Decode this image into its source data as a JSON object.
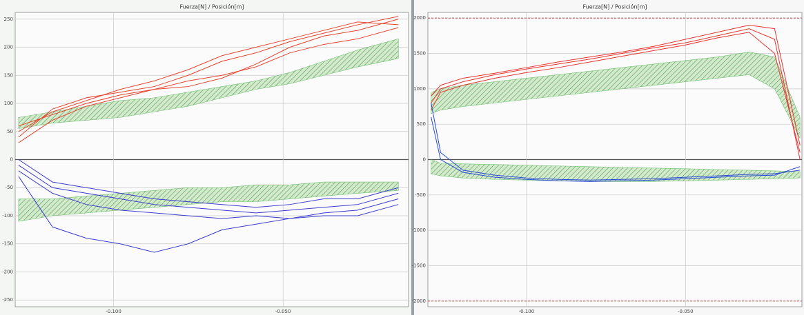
{
  "chart_data": [
    {
      "type": "line",
      "title": "Fuerza[N] / Posición[m]",
      "x": [
        -0.128,
        -0.118,
        -0.108,
        -0.098,
        -0.088,
        -0.078,
        -0.068,
        -0.058,
        -0.048,
        -0.038,
        -0.028,
        -0.016
      ],
      "xlim": [
        -0.129,
        -0.013
      ],
      "xticks": [
        {
          "value": -0.1,
          "label": "-0.100"
        },
        {
          "value": -0.05,
          "label": "-0.050"
        }
      ],
      "ylim": [
        -262,
        262
      ],
      "yticks": [
        250,
        200,
        150,
        100,
        50,
        0,
        -50,
        -100,
        -150,
        -200,
        -250
      ],
      "grid": true,
      "bands": [
        {
          "color": "#5cb85c",
          "lower": [
            55,
            65,
            70,
            75,
            85,
            95,
            110,
            125,
            135,
            150,
            165,
            180
          ],
          "upper": [
            75,
            85,
            95,
            105,
            110,
            120,
            130,
            140,
            155,
            175,
            195,
            215
          ]
        },
        {
          "color": "#5cb85c",
          "lower": [
            -110,
            -100,
            -95,
            -90,
            -85,
            -80,
            -75,
            -75,
            -70,
            -65,
            -60,
            -55
          ],
          "upper": [
            -70,
            -70,
            -65,
            -60,
            -55,
            -50,
            -50,
            -45,
            -45,
            -40,
            -40,
            -40
          ]
        }
      ],
      "series": [
        {
          "color": "#e8432e",
          "values": [
            40,
            90,
            110,
            120,
            130,
            150,
            175,
            190,
            210,
            225,
            240,
            255
          ]
        },
        {
          "color": "#e8432e",
          "values": [
            60,
            80,
            100,
            115,
            125,
            140,
            150,
            165,
            190,
            205,
            215,
            235
          ]
        },
        {
          "color": "#e8432e",
          "values": [
            30,
            70,
            95,
            110,
            125,
            130,
            145,
            170,
            200,
            220,
            230,
            250
          ]
        },
        {
          "color": "#e8432e",
          "values": [
            50,
            85,
            105,
            125,
            140,
            160,
            185,
            200,
            215,
            230,
            245,
            240
          ]
        },
        {
          "color": "#3a3ad0",
          "values": [
            -10,
            -50,
            -60,
            -70,
            -80,
            -85,
            -90,
            -95,
            -90,
            -85,
            -80,
            -60
          ]
        },
        {
          "color": "#3a3ad0",
          "values": [
            -20,
            -60,
            -80,
            -90,
            -95,
            -100,
            -105,
            -100,
            -105,
            -95,
            -90,
            -70
          ]
        },
        {
          "color": "#3a3ad0",
          "values": [
            -30,
            -120,
            -140,
            -150,
            -165,
            -150,
            -125,
            -115,
            -105,
            -100,
            -100,
            -80
          ]
        },
        {
          "color": "#3a3ad0",
          "values": [
            0,
            -40,
            -50,
            -60,
            -70,
            -75,
            -80,
            -85,
            -80,
            -70,
            -70,
            -50
          ]
        }
      ]
    },
    {
      "type": "line",
      "title": "Fuerza[N] / Posición[m]",
      "x": [
        -0.13,
        -0.127,
        -0.12,
        -0.11,
        -0.1,
        -0.09,
        -0.08,
        -0.07,
        -0.06,
        -0.05,
        -0.04,
        -0.03,
        -0.022,
        -0.014
      ],
      "xlim": [
        -0.131,
        -0.0134
      ],
      "xticks": [
        {
          "value": -0.1,
          "label": "-0.100"
        },
        {
          "value": -0.05,
          "label": "-0.050"
        }
      ],
      "ylim": [
        -2080,
        2080
      ],
      "yticks": [
        2000,
        1500,
        1000,
        500,
        0,
        -500,
        -1000,
        -1500,
        -2000
      ],
      "grid": true,
      "limit_lines": [
        2000,
        -2000
      ],
      "limit_color": "#a03030",
      "bands": [
        {
          "color": "#5cb85c",
          "lower": [
            650,
            700,
            750,
            800,
            850,
            900,
            950,
            1000,
            1050,
            1100,
            1150,
            1200,
            1000,
            300
          ],
          "upper": [
            950,
            1000,
            1050,
            1100,
            1150,
            1200,
            1250,
            1300,
            1350,
            1400,
            1450,
            1520,
            1450,
            600
          ]
        },
        {
          "color": "#5cb85c",
          "lower": [
            -200,
            -230,
            -260,
            -280,
            -290,
            -300,
            -310,
            -310,
            -310,
            -300,
            -290,
            -280,
            -270,
            -260
          ],
          "upper": [
            0,
            -50,
            -60,
            -70,
            -80,
            -90,
            -100,
            -110,
            -120,
            -130,
            -140,
            -150,
            -160,
            -170
          ]
        }
      ],
      "series": [
        {
          "color": "#e8332e",
          "values": [
            800,
            1000,
            1100,
            1200,
            1280,
            1350,
            1420,
            1500,
            1580,
            1650,
            1750,
            1850,
            1700,
            0
          ]
        },
        {
          "color": "#e8332e",
          "values": [
            900,
            1050,
            1150,
            1220,
            1300,
            1380,
            1450,
            1520,
            1600,
            1700,
            1800,
            1900,
            1850,
            200
          ]
        },
        {
          "color": "#e8332e",
          "values": [
            700,
            950,
            1050,
            1150,
            1230,
            1300,
            1380,
            1460,
            1540,
            1620,
            1720,
            1800,
            1500,
            100
          ]
        },
        {
          "color": "#2a4ad8",
          "values": [
            800,
            100,
            -150,
            -220,
            -260,
            -280,
            -290,
            -280,
            -270,
            -250,
            -230,
            -210,
            -200,
            -150
          ]
        },
        {
          "color": "#2a4ad8",
          "values": [
            600,
            0,
            -180,
            -250,
            -280,
            -300,
            -310,
            -300,
            -290,
            -270,
            -250,
            -230,
            -220,
            -100
          ]
        }
      ]
    }
  ]
}
